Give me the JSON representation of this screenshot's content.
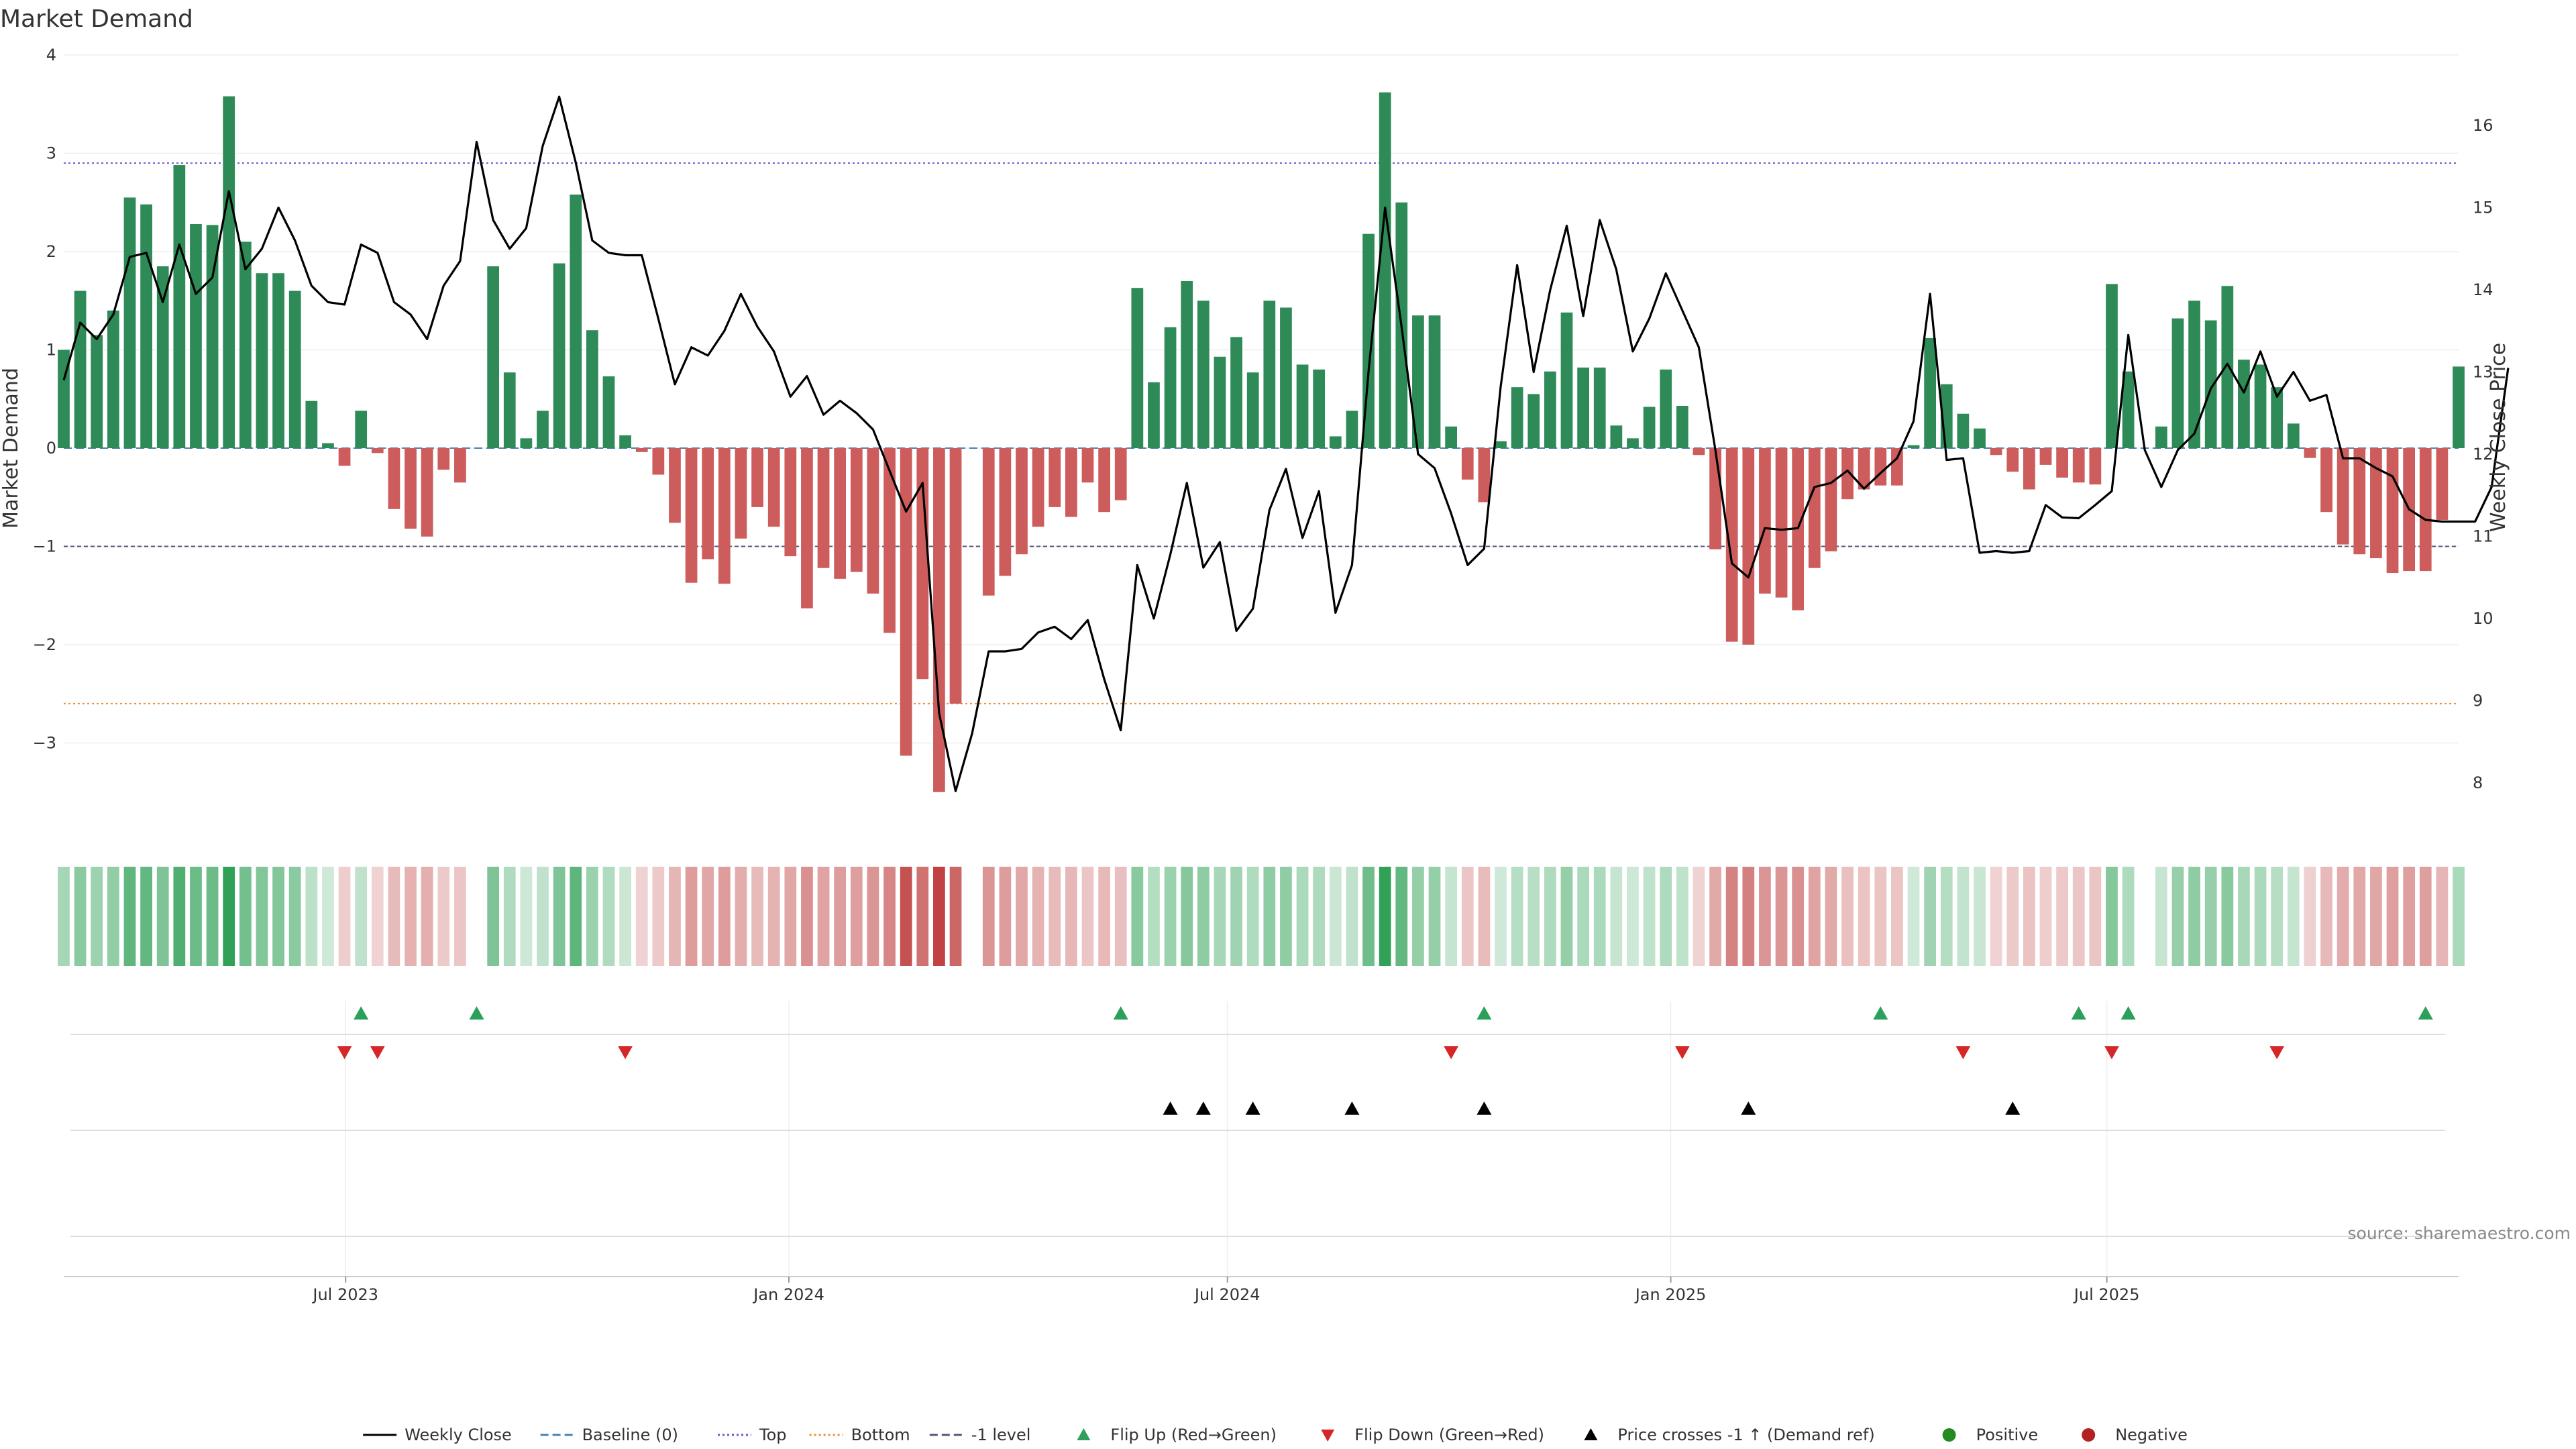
{
  "chart_data": {
    "type": "bar",
    "title": "Market Demand",
    "ylabel": "Market Demand",
    "y2label": "Weekly Close Price",
    "ylim": [
      -3.9,
      4.0
    ],
    "y2lim": [
      7.3,
      16.75
    ],
    "yticks": [
      "4",
      "3",
      "2",
      "1",
      "0",
      "−1",
      "−2",
      "−3"
    ],
    "y2ticks": [
      "16",
      "15",
      "14",
      "13",
      "12",
      "11",
      "10",
      "9",
      "8"
    ],
    "x_start": "2023-03-06",
    "x_end": "2025-11-24",
    "x_tick_labels": [
      {
        "date": "2023-07-01",
        "label": "Jul 2023"
      },
      {
        "date": "2024-01-01",
        "label": "Jan 2024"
      },
      {
        "date": "2024-07-01",
        "label": "Jul 2024"
      },
      {
        "date": "2025-01-01",
        "label": "Jan 2025"
      },
      {
        "date": "2025-07-01",
        "label": "Jul 2025"
      }
    ],
    "reference_lines": {
      "top": 2.9,
      "bottom": -2.6,
      "minus1": -1.0,
      "baseline": 0
    },
    "colors": {
      "positive": "#2e8b57",
      "negative": "#cd5c5c",
      "price": "#000000",
      "top": "#6a5acd",
      "bottom": "#e69138",
      "minus1": "#555577",
      "baseline": "#4682b4",
      "flip_up": "#2ca05a",
      "flip_down": "#d62728",
      "cross": "#000000"
    },
    "demand": [
      1.0,
      1.6,
      1.15,
      1.4,
      2.55,
      2.48,
      1.85,
      2.88,
      2.28,
      2.27,
      3.58,
      2.1,
      1.78,
      1.78,
      1.6,
      0.48,
      0.05,
      -0.18,
      0.38,
      -0.05,
      -0.62,
      -0.82,
      -0.9,
      -0.22,
      -0.35,
      null,
      1.85,
      0.77,
      0.1,
      0.38,
      1.88,
      2.58,
      1.2,
      0.73,
      0.13,
      -0.04,
      -0.27,
      -0.76,
      -1.37,
      -1.13,
      -1.38,
      -0.92,
      -0.6,
      -0.8,
      -1.1,
      -1.63,
      -1.22,
      -1.33,
      -1.26,
      -1.48,
      -1.88,
      -3.13,
      -2.35,
      -3.5,
      -2.6,
      null,
      -1.5,
      -1.3,
      -1.08,
      -0.8,
      -0.6,
      -0.7,
      -0.35,
      -0.65,
      -0.53,
      1.63,
      0.67,
      1.23,
      1.7,
      1.5,
      0.93,
      1.13,
      0.77,
      1.5,
      1.43,
      0.85,
      0.8,
      0.12,
      0.38,
      2.18,
      3.62,
      2.5,
      1.35,
      1.35,
      0.22,
      -0.32,
      -0.55,
      0.07,
      0.62,
      0.55,
      0.78,
      1.38,
      0.82,
      0.82,
      0.23,
      0.1,
      0.42,
      0.8,
      0.43,
      -0.07,
      -1.03,
      -1.97,
      -2.0,
      -1.48,
      -1.52,
      -1.65,
      -1.22,
      -1.05,
      -0.52,
      -0.42,
      -0.38,
      -0.38,
      0.03,
      1.12,
      0.65,
      0.35,
      0.2,
      -0.07,
      -0.24,
      -0.42,
      -0.17,
      -0.3,
      -0.35,
      -0.37,
      1.67,
      0.78,
      null,
      0.22,
      1.32,
      1.5,
      1.3,
      1.65,
      0.9,
      0.85,
      0.62,
      0.25,
      -0.1,
      -0.65,
      -0.98,
      -1.08,
      -1.12,
      -1.27,
      -1.25,
      -1.25,
      -0.73,
      0.83
    ],
    "price": [
      12.9,
      13.6,
      13.4,
      13.7,
      14.4,
      14.45,
      13.85,
      14.55,
      13.95,
      14.15,
      15.2,
      14.25,
      14.5,
      15.0,
      14.6,
      14.05,
      13.85,
      13.82,
      14.55,
      14.45,
      13.85,
      13.7,
      13.4,
      14.05,
      14.35,
      15.8,
      14.85,
      14.5,
      14.75,
      15.75,
      16.35,
      15.55,
      14.6,
      14.45,
      14.42,
      14.42,
      13.65,
      12.85,
      13.3,
      13.2,
      13.5,
      13.95,
      13.55,
      13.25,
      12.7,
      12.95,
      12.48,
      12.65,
      12.5,
      12.3,
      11.8,
      11.3,
      11.65,
      8.85,
      7.9,
      8.6,
      9.6,
      9.6,
      9.63,
      9.83,
      9.9,
      9.75,
      9.98,
      9.26,
      8.64,
      10.65,
      10.0,
      10.78,
      11.65,
      10.62,
      10.93,
      9.85,
      10.12,
      11.32,
      11.82,
      10.98,
      11.55,
      10.07,
      10.65,
      13.0,
      15.0,
      13.55,
      12.0,
      11.83,
      11.28,
      10.65,
      10.85,
      12.82,
      14.3,
      13.0,
      14.0,
      14.78,
      13.68,
      14.85,
      14.25,
      13.25,
      13.65,
      14.2,
      13.75,
      13.3,
      12.05,
      10.67,
      10.5,
      11.1,
      11.08,
      11.1,
      11.6,
      11.65,
      11.8,
      11.58,
      11.77,
      11.95,
      12.4,
      13.95,
      11.93,
      11.95,
      10.8,
      10.82,
      10.8,
      10.82,
      11.38,
      11.23,
      11.22,
      11.38,
      11.55,
      13.45,
      12.05,
      11.6,
      12.05,
      12.25,
      12.8,
      13.1,
      12.75,
      13.25,
      12.7,
      13.0,
      12.65,
      12.72,
      11.95,
      11.95,
      11.83,
      11.73,
      11.33,
      11.2,
      11.18,
      11.18,
      11.18,
      11.6,
      13.05
    ],
    "flip_up_idx": [
      18,
      25,
      64,
      86,
      110,
      122,
      125,
      143
    ],
    "flip_down_idx": [
      17,
      19,
      34,
      84,
      98,
      115,
      124,
      134
    ],
    "cross_idx": [
      67,
      69,
      72,
      78,
      86,
      102,
      118
    ],
    "source": "source: sharemaestro.com",
    "legend": [
      {
        "label": "Weekly Close",
        "kind": "line",
        "color": "#000000"
      },
      {
        "label": "Baseline (0)",
        "kind": "dash",
        "color": "#4682b4"
      },
      {
        "label": "Top",
        "kind": "dot",
        "color": "#6a5acd"
      },
      {
        "label": "Bottom",
        "kind": "dot",
        "color": "#e69138"
      },
      {
        "label": "-1 level",
        "kind": "dash",
        "color": "#555577"
      },
      {
        "label": "Flip Up (Red→Green)",
        "kind": "tri-up",
        "color": "#2ca05a"
      },
      {
        "label": "Flip Down (Green→Red)",
        "kind": "tri-down",
        "color": "#d62728"
      },
      {
        "label": "Price crosses -1 ↑ (Demand ref)",
        "kind": "tri-up",
        "color": "#000000"
      },
      {
        "label": "Positive",
        "kind": "circle",
        "color": "#228b22"
      },
      {
        "label": "Negative",
        "kind": "circle",
        "color": "#b22222"
      }
    ]
  }
}
